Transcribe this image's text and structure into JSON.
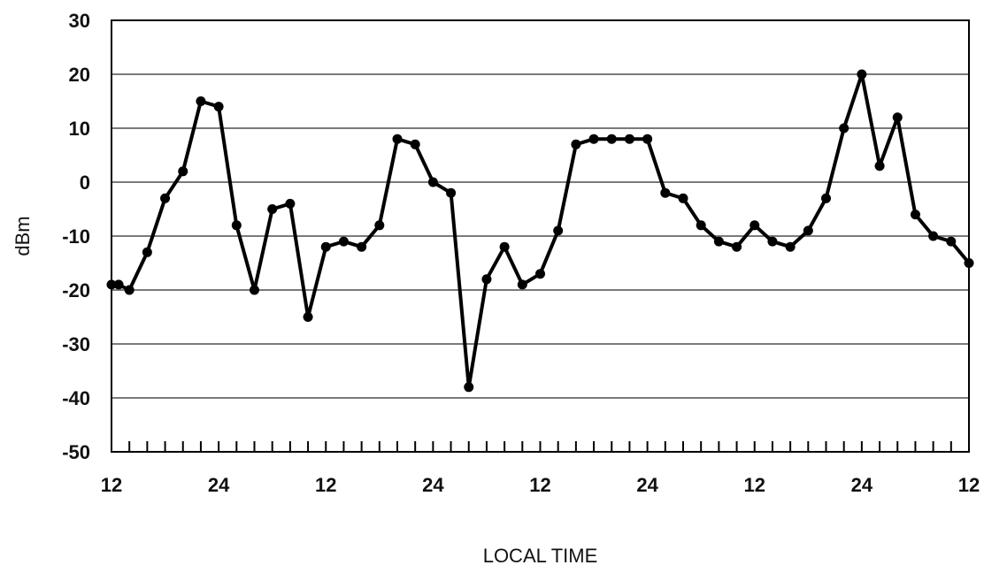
{
  "chart_data": {
    "type": "line",
    "title": "",
    "xlabel": "LOCAL TIME",
    "ylabel": "dBm",
    "ylim": [
      -50,
      30
    ],
    "yticks": [
      30,
      20,
      10,
      0,
      -10,
      -20,
      -30,
      -40,
      -50
    ],
    "xlim": [
      0,
      48
    ],
    "xtick_labels": [
      {
        "x": 0,
        "label": "12"
      },
      {
        "x": 6,
        "label": "24"
      },
      {
        "x": 12,
        "label": "12"
      },
      {
        "x": 18,
        "label": "24"
      },
      {
        "x": 24,
        "label": "12"
      },
      {
        "x": 30,
        "label": "24"
      },
      {
        "x": 36,
        "label": "12"
      },
      {
        "x": 42,
        "label": "24"
      },
      {
        "x": 48,
        "label": "12"
      }
    ],
    "minor_tick_step": 1,
    "grid": "horizontal",
    "series": [
      {
        "color": "#000000",
        "marker": "circle",
        "x": [
          0,
          0.4,
          1,
          2,
          3,
          4,
          5,
          6,
          7,
          8,
          9,
          10,
          11,
          12,
          13,
          14,
          15,
          16,
          17,
          18,
          19,
          20,
          21,
          22,
          23,
          24,
          25,
          26,
          27,
          28,
          29,
          30,
          31,
          32,
          33,
          34,
          35,
          36,
          37,
          38,
          39,
          40,
          41,
          42,
          43,
          44,
          45,
          46,
          47,
          48
        ],
        "y": [
          -19,
          -19,
          -20,
          -13,
          -3,
          2,
          15,
          14,
          -8,
          -20,
          -5,
          -4,
          -25,
          -12,
          -11,
          -12,
          -8,
          8,
          7,
          0,
          -2,
          -38,
          -18,
          -12,
          -19,
          -17,
          -9,
          7,
          8,
          8,
          8,
          8,
          -2,
          -3,
          -8,
          -11,
          -12,
          -8,
          -11,
          -12,
          -9,
          -3,
          10,
          20,
          3,
          12,
          -6,
          -10,
          -11,
          -15
        ]
      }
    ]
  }
}
